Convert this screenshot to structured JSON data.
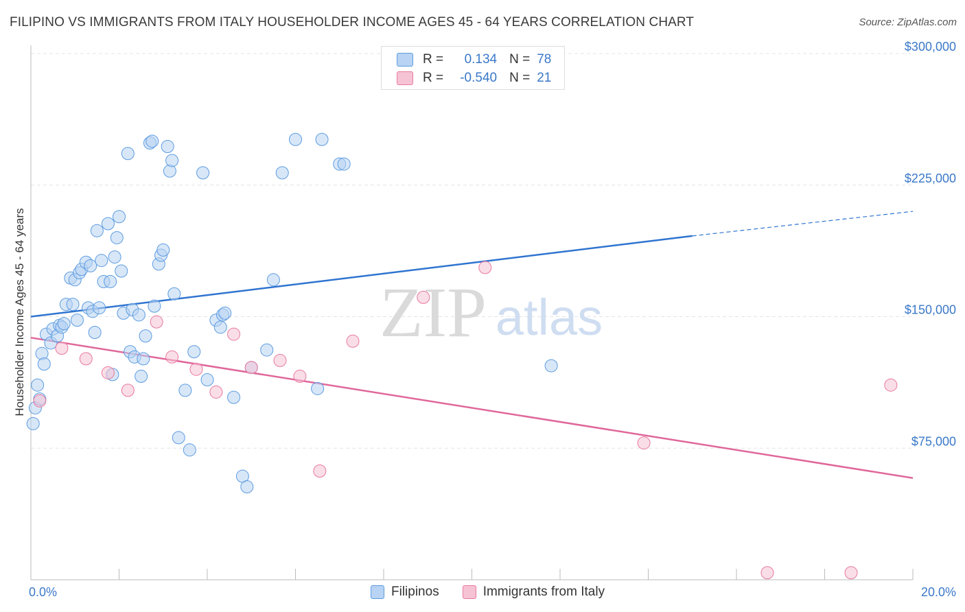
{
  "title": "FILIPINO VS IMMIGRANTS FROM ITALY HOUSEHOLDER INCOME AGES 45 - 64 YEARS CORRELATION CHART",
  "source": "Source: ZipAtlas.com",
  "watermark": {
    "zip": "ZIP",
    "atlas": "atlas"
  },
  "colors": {
    "blue": "#5b9be0",
    "blue_fill": "#b8d3f3",
    "blue_line": "#2f74d0",
    "pink": "#e8789e",
    "pink_fill": "#f6c3d4",
    "pink_line": "#e0679a",
    "axis_label": "#3a78c8"
  },
  "stats": [
    {
      "r_label": "R =",
      "r_value": "0.134",
      "n_label": "N =",
      "n_value": "78"
    },
    {
      "r_label": "R =",
      "r_value": "-0.540",
      "n_label": "N =",
      "n_value": "21"
    }
  ],
  "legend": [
    {
      "label": "Filipinos"
    },
    {
      "label": "Immigrants from Italy"
    }
  ],
  "chart_data": {
    "type": "scatter",
    "title": "FILIPINO VS IMMIGRANTS FROM ITALY HOUSEHOLDER INCOME AGES 45 - 64 YEARS CORRELATION CHART",
    "xlabel": "",
    "ylabel": "Householder Income Ages 45 - 64 years",
    "xlim": [
      0,
      20
    ],
    "ylim": [
      0,
      300000
    ],
    "x_tick_labels": [
      "0.0%",
      "20.0%"
    ],
    "y_ticks": [
      75000,
      150000,
      225000,
      300000
    ],
    "y_tick_labels": [
      "$75,000",
      "$150,000",
      "$225,000",
      "$300,000"
    ],
    "grid": true,
    "series": [
      {
        "name": "Filipinos",
        "points": [
          [
            0.05,
            89000
          ],
          [
            0.1,
            98000
          ],
          [
            0.15,
            111000
          ],
          [
            0.2,
            103000
          ],
          [
            0.25,
            129000
          ],
          [
            0.3,
            123000
          ],
          [
            0.35,
            140000
          ],
          [
            0.45,
            135000
          ],
          [
            0.5,
            143000
          ],
          [
            0.6,
            139000
          ],
          [
            0.65,
            145000
          ],
          [
            0.7,
            144000
          ],
          [
            0.75,
            146000
          ],
          [
            0.8,
            157000
          ],
          [
            0.9,
            172000
          ],
          [
            0.95,
            157000
          ],
          [
            1.0,
            171000
          ],
          [
            1.05,
            148000
          ],
          [
            1.1,
            175000
          ],
          [
            1.15,
            177000
          ],
          [
            1.25,
            181000
          ],
          [
            1.3,
            155000
          ],
          [
            1.35,
            179000
          ],
          [
            1.4,
            153000
          ],
          [
            1.45,
            141000
          ],
          [
            1.5,
            199000
          ],
          [
            1.55,
            155000
          ],
          [
            1.6,
            182000
          ],
          [
            1.65,
            170000
          ],
          [
            1.75,
            203000
          ],
          [
            1.8,
            170000
          ],
          [
            1.85,
            117000
          ],
          [
            1.9,
            184000
          ],
          [
            1.95,
            195000
          ],
          [
            2.0,
            207000
          ],
          [
            2.05,
            176000
          ],
          [
            2.1,
            152000
          ],
          [
            2.2,
            243000
          ],
          [
            2.25,
            130000
          ],
          [
            2.3,
            154000
          ],
          [
            2.35,
            127000
          ],
          [
            2.45,
            151000
          ],
          [
            2.5,
            116000
          ],
          [
            2.55,
            126000
          ],
          [
            2.6,
            139000
          ],
          [
            2.7,
            249000
          ],
          [
            2.75,
            250000
          ],
          [
            2.8,
            156000
          ],
          [
            2.9,
            180000
          ],
          [
            2.95,
            185000
          ],
          [
            3.0,
            188000
          ],
          [
            3.1,
            247000
          ],
          [
            3.15,
            233000
          ],
          [
            3.2,
            239000
          ],
          [
            3.25,
            163000
          ],
          [
            3.35,
            81000
          ],
          [
            3.5,
            108000
          ],
          [
            3.6,
            74000
          ],
          [
            3.7,
            130000
          ],
          [
            3.9,
            232000
          ],
          [
            4.0,
            114000
          ],
          [
            4.2,
            148000
          ],
          [
            4.3,
            144000
          ],
          [
            4.35,
            151000
          ],
          [
            4.4,
            152000
          ],
          [
            4.6,
            104000
          ],
          [
            4.8,
            59000
          ],
          [
            4.9,
            53000
          ],
          [
            5.0,
            121000
          ],
          [
            5.35,
            131000
          ],
          [
            5.5,
            171000
          ],
          [
            5.7,
            232000
          ],
          [
            6.0,
            251000
          ],
          [
            6.5,
            109000
          ],
          [
            6.6,
            251000
          ],
          [
            7.0,
            237000
          ],
          [
            7.1,
            237000
          ],
          [
            11.8,
            122000
          ]
        ]
      },
      {
        "name": "Immigrants from Italy",
        "points": [
          [
            0.2,
            102000
          ],
          [
            0.7,
            132000
          ],
          [
            1.25,
            126000
          ],
          [
            1.75,
            118000
          ],
          [
            2.2,
            108000
          ],
          [
            2.85,
            147000
          ],
          [
            3.2,
            127000
          ],
          [
            3.75,
            120000
          ],
          [
            4.2,
            107000
          ],
          [
            4.6,
            140000
          ],
          [
            5.0,
            121000
          ],
          [
            5.65,
            125000
          ],
          [
            6.1,
            116000
          ],
          [
            6.55,
            62000
          ],
          [
            7.3,
            136000
          ],
          [
            8.9,
            161000
          ],
          [
            10.3,
            178000
          ],
          [
            13.9,
            78000
          ],
          [
            16.7,
            4000
          ],
          [
            18.6,
            4000
          ],
          [
            19.5,
            111000
          ]
        ]
      }
    ],
    "trendlines": [
      {
        "series": "Filipinos",
        "x_start": 0,
        "y_start": 150000,
        "x_solid_end": 15.0,
        "y_solid_end": 196000,
        "x_end": 20,
        "y_end": 210000,
        "dashed_extension": true
      },
      {
        "series": "Immigrants from Italy",
        "x_start": 0,
        "y_start": 138000,
        "x_end": 20,
        "y_end": 58000
      }
    ]
  }
}
